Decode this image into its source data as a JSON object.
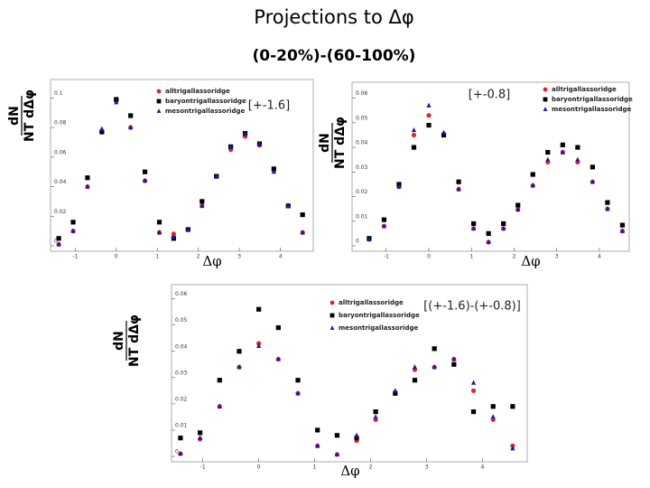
{
  "slide": {
    "title": "Projections to Δφ",
    "subtitle": "(0-20%)-(60-100%)"
  },
  "chart_data": [
    {
      "type": "scatter",
      "annotation": "[+-1.6]",
      "xlabel": "Δφ",
      "ylabel": [
        "dN",
        "NT dΔφ"
      ],
      "x": [
        -1.4,
        -1.05,
        -0.7,
        -0.35,
        0,
        0.35,
        0.7,
        1.05,
        1.4,
        1.75,
        2.09,
        2.44,
        2.79,
        3.14,
        3.49,
        3.84,
        4.19,
        4.54
      ],
      "series": [
        {
          "name": "alltrigallassoridge",
          "color": "#e8202a",
          "marker": "circle",
          "values": [
            0.001,
            0.01,
            0.04,
            0.077,
            0.098,
            0.08,
            0.044,
            0.009,
            0.008,
            0.011,
            0.027,
            0.047,
            0.065,
            0.074,
            0.068,
            0.051,
            0.027,
            0.009
          ]
        },
        {
          "name": "baryontrigallassoridge",
          "color": "#000000",
          "marker": "square",
          "values": [
            0.005,
            0.016,
            0.046,
            0.077,
            0.099,
            0.088,
            0.05,
            0.016,
            0.005,
            0.011,
            0.03,
            0.047,
            0.067,
            0.076,
            0.069,
            0.052,
            0.027,
            0.021
          ]
        },
        {
          "name": "mesontrigallassoridge",
          "color": "#1a1aa8",
          "marker": "triangle",
          "values": [
            0.001,
            0.01,
            0.04,
            0.079,
            0.097,
            0.08,
            0.044,
            0.009,
            0.006,
            0.011,
            0.027,
            0.047,
            0.067,
            0.076,
            0.069,
            0.05,
            0.027,
            0.009
          ]
        }
      ],
      "xlim": [
        -1.6,
        4.8
      ],
      "ylim": [
        0,
        0.11
      ],
      "xticks": [
        -1,
        0,
        1,
        2,
        3,
        4
      ],
      "yticks": [
        0,
        0.02,
        0.04,
        0.06,
        0.08,
        0.1
      ]
    },
    {
      "type": "scatter",
      "annotation": "[+-0.8]",
      "xlabel": "Δφ",
      "ylabel": [
        "dN",
        "NT dΔφ"
      ],
      "x": [
        -1.4,
        -1.05,
        -0.7,
        -0.35,
        0,
        0.35,
        0.7,
        1.05,
        1.4,
        1.75,
        2.09,
        2.44,
        2.79,
        3.14,
        3.49,
        3.84,
        4.19,
        4.54
      ],
      "series": [
        {
          "name": "alltrigallassoridge",
          "color": "#e8202a",
          "marker": "circle",
          "values": [
            0.0026,
            0.008,
            0.024,
            0.045,
            0.053,
            0.045,
            0.023,
            0.007,
            0.0015,
            0.007,
            0.0147,
            0.0245,
            0.034,
            0.038,
            0.034,
            0.026,
            0.015,
            0.006
          ]
        },
        {
          "name": "baryontrigallassoridge",
          "color": "#000000",
          "marker": "square",
          "values": [
            0.003,
            0.0106,
            0.025,
            0.04,
            0.049,
            0.045,
            0.026,
            0.009,
            0.005,
            0.009,
            0.0165,
            0.029,
            0.038,
            0.041,
            0.04,
            0.032,
            0.0176,
            0.0084
          ]
        },
        {
          "name": "mesontrigallassoridge",
          "color": "#1a1aa8",
          "marker": "triangle",
          "values": [
            0.0026,
            0.008,
            0.024,
            0.047,
            0.057,
            0.046,
            0.023,
            0.007,
            0.0015,
            0.007,
            0.0147,
            0.0245,
            0.035,
            0.038,
            0.035,
            0.026,
            0.015,
            0.006
          ]
        }
      ],
      "xlim": [
        -1.8,
        4.7
      ],
      "ylim": [
        0,
        0.065
      ],
      "xticks": [
        -1,
        0,
        1,
        2,
        3,
        4
      ],
      "yticks": [
        0,
        0.01,
        0.02,
        0.03,
        0.04,
        0.05,
        0.06
      ]
    },
    {
      "type": "scatter",
      "annotation": "[(+-1.6)-(+-0.8)]",
      "xlabel": "Δφ",
      "ylabel": [
        "dN",
        "NT dΔφ"
      ],
      "x": [
        -1.4,
        -1.05,
        -0.7,
        -0.35,
        0,
        0.35,
        0.7,
        1.05,
        1.4,
        1.75,
        2.09,
        2.44,
        2.79,
        3.14,
        3.49,
        3.84,
        4.19,
        4.54
      ],
      "series": [
        {
          "name": "alltrigallassoridge",
          "color": "#e8202a",
          "marker": "circle",
          "values": [
            0.001,
            0.0066,
            0.019,
            0.034,
            0.043,
            0.037,
            0.024,
            0.004,
            0.0007,
            0.006,
            0.014,
            0.024,
            0.033,
            0.034,
            0.037,
            0.025,
            0.014,
            0.004
          ]
        },
        {
          "name": "baryontrigallassoridge",
          "color": "#000000",
          "marker": "square",
          "values": [
            0.007,
            0.009,
            0.029,
            0.04,
            0.056,
            0.049,
            0.029,
            0.01,
            0.008,
            0.007,
            0.017,
            0.024,
            0.029,
            0.041,
            0.035,
            0.017,
            0.019,
            0.019
          ]
        },
        {
          "name": "mesontrigallassoridge",
          "color": "#1a1aa8",
          "marker": "triangle",
          "values": [
            0.001,
            0.007,
            0.019,
            0.034,
            0.042,
            0.037,
            0.024,
            0.004,
            0.0007,
            0.008,
            0.015,
            0.025,
            0.034,
            0.034,
            0.037,
            0.028,
            0.015,
            0.003
          ]
        }
      ],
      "xlim": [
        -1.56,
        4.8
      ],
      "ylim": [
        0,
        0.064
      ],
      "xticks": [
        -1,
        0,
        1,
        2,
        3,
        4
      ],
      "yticks": [
        0,
        0.01,
        0.02,
        0.03,
        0.04,
        0.05,
        0.06
      ]
    }
  ]
}
